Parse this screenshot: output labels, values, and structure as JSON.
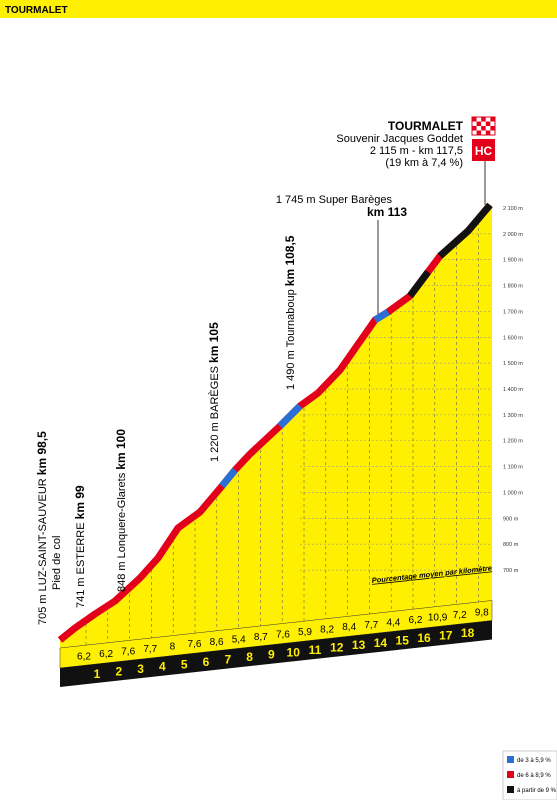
{
  "header": {
    "title": "TOURMALET"
  },
  "altitude_axis": [
    "2 100 m",
    "2 000 m",
    "1 900 m",
    "1 800 m",
    "1 700 m",
    "1 600 m",
    "1 500 m",
    "1 400 m",
    "1 300 m",
    "1 200 m",
    "1 100 m",
    "1 000 m",
    "900 m",
    "800 m",
    "700 m"
  ],
  "gradients": [
    "6,2",
    "6,2",
    "7,6",
    "7,7",
    "8",
    "7,6",
    "8,6",
    "5,4",
    "8,7",
    "7,6",
    "5,9",
    "8,2",
    "8,4",
    "7,7",
    "4,4",
    "6,2",
    "10,9",
    "7,2",
    "9,8"
  ],
  "km_markers": [
    "1",
    "2",
    "3",
    "4",
    "5",
    "6",
    "7",
    "8",
    "9",
    "10",
    "11",
    "12",
    "13",
    "14",
    "15",
    "16",
    "17",
    "18"
  ],
  "gradient_caption": "Pourcentage moyen par kilomètre",
  "summit": {
    "name": "TOURMALET",
    "dedication": "Souvenir Jacques Goddet",
    "detail": "2 115 m - km 117,5",
    "stats": "(19 km à 7,4 %)",
    "category": "HC"
  },
  "waypoints": [
    {
      "label": "705 m LUZ-SAINT-SAUVEUR ",
      "km": "km 98,5",
      "note": "Pied de col"
    },
    {
      "label": "741 m ESTERRE ",
      "km": "km 99"
    },
    {
      "label": "848 m Lonquere-Glarets ",
      "km": "km 100"
    },
    {
      "label": "1 220 m BARÈGES ",
      "km": "km 105"
    },
    {
      "label": "1 490 m Tournaboup ",
      "km": "km 108,5"
    },
    {
      "label": "1 745 m Super Barèges",
      "km": "km 113"
    }
  ],
  "legend": [
    "de 3 à 5,9 %",
    "de 6 à 8,9 %",
    "à partir de 9 %"
  ]
}
